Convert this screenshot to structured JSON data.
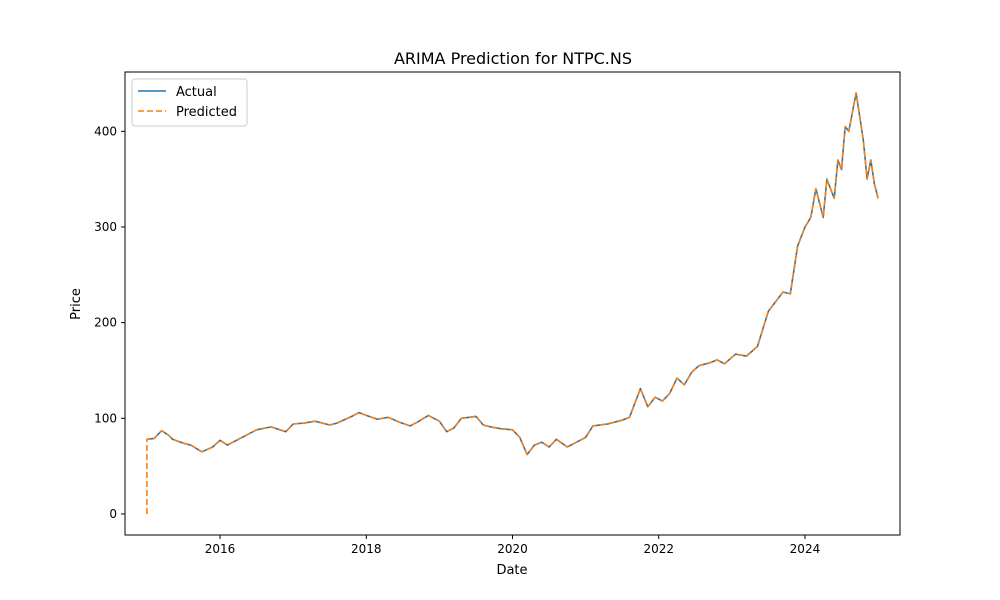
{
  "chart_data": {
    "type": "line",
    "title": "ARIMA Prediction for NTPC.NS",
    "xlabel": "Date",
    "ylabel": "Price",
    "xlim": [
      2014.7,
      2025.3
    ],
    "ylim": [
      -22,
      462
    ],
    "xticks": [
      2016,
      2018,
      2020,
      2022,
      2024
    ],
    "xtick_labels": [
      "2016",
      "2018",
      "2020",
      "2022",
      "2024"
    ],
    "yticks": [
      0,
      100,
      200,
      300,
      400
    ],
    "ytick_labels": [
      "0",
      "100",
      "200",
      "300",
      "400"
    ],
    "grid": false,
    "legend_position": "top-left",
    "series": [
      {
        "name": "Actual",
        "color": "#1f77b4",
        "style": "solid",
        "x": [
          2015.0,
          2015.1,
          2015.2,
          2015.3,
          2015.35,
          2015.5,
          2015.6,
          2015.75,
          2015.9,
          2016.0,
          2016.1,
          2016.3,
          2016.5,
          2016.7,
          2016.9,
          2017.0,
          2017.15,
          2017.3,
          2017.5,
          2017.6,
          2017.8,
          2017.9,
          2018.0,
          2018.15,
          2018.3,
          2018.45,
          2018.6,
          2018.7,
          2018.85,
          2019.0,
          2019.1,
          2019.2,
          2019.3,
          2019.5,
          2019.6,
          2019.7,
          2019.85,
          2020.0,
          2020.1,
          2020.2,
          2020.3,
          2020.4,
          2020.5,
          2020.6,
          2020.75,
          2020.85,
          2021.0,
          2021.1,
          2021.3,
          2021.5,
          2021.6,
          2021.75,
          2021.85,
          2021.95,
          2022.05,
          2022.15,
          2022.25,
          2022.35,
          2022.45,
          2022.55,
          2022.7,
          2022.8,
          2022.9,
          2023.05,
          2023.2,
          2023.35,
          2023.5,
          2023.6,
          2023.7,
          2023.8,
          2023.9,
          2024.0,
          2024.08,
          2024.15,
          2024.25,
          2024.3,
          2024.4,
          2024.45,
          2024.5,
          2024.55,
          2024.6,
          2024.7,
          2024.75,
          2024.8,
          2024.85,
          2024.9,
          2024.95,
          2025.0
        ],
        "y": [
          78,
          79,
          87,
          82,
          78,
          74,
          72,
          65,
          70,
          77,
          72,
          80,
          88,
          91,
          86,
          94,
          95,
          97,
          93,
          95,
          102,
          106,
          103,
          99,
          101,
          96,
          92,
          96,
          103,
          97,
          86,
          90,
          100,
          102,
          93,
          91,
          89,
          88,
          80,
          62,
          72,
          75,
          70,
          78,
          70,
          74,
          80,
          92,
          94,
          98,
          101,
          131,
          112,
          122,
          118,
          126,
          142,
          135,
          148,
          155,
          158,
          161,
          157,
          167,
          165,
          175,
          212,
          222,
          232,
          230,
          280,
          300,
          310,
          340,
          310,
          350,
          330,
          370,
          360,
          405,
          400,
          440,
          415,
          390,
          350,
          370,
          345,
          330
        ]
      },
      {
        "name": "Predicted",
        "color": "#ff7f0e",
        "style": "dashed",
        "x": [
          2015.0,
          2015.0,
          2015.1,
          2015.2,
          2015.3,
          2015.35,
          2015.5,
          2015.6,
          2015.75,
          2015.9,
          2016.0,
          2016.1,
          2016.3,
          2016.5,
          2016.7,
          2016.9,
          2017.0,
          2017.15,
          2017.3,
          2017.5,
          2017.6,
          2017.8,
          2017.9,
          2018.0,
          2018.15,
          2018.3,
          2018.45,
          2018.6,
          2018.7,
          2018.85,
          2019.0,
          2019.1,
          2019.2,
          2019.3,
          2019.5,
          2019.6,
          2019.7,
          2019.85,
          2020.0,
          2020.1,
          2020.2,
          2020.3,
          2020.4,
          2020.5,
          2020.6,
          2020.75,
          2020.85,
          2021.0,
          2021.1,
          2021.3,
          2021.5,
          2021.6,
          2021.75,
          2021.85,
          2021.95,
          2022.05,
          2022.15,
          2022.25,
          2022.35,
          2022.45,
          2022.55,
          2022.7,
          2022.8,
          2022.9,
          2023.05,
          2023.2,
          2023.35,
          2023.5,
          2023.6,
          2023.7,
          2023.8,
          2023.9,
          2024.0,
          2024.08,
          2024.15,
          2024.25,
          2024.3,
          2024.4,
          2024.45,
          2024.5,
          2024.55,
          2024.6,
          2024.7,
          2024.75,
          2024.8,
          2024.85,
          2024.9,
          2024.95,
          2025.0
        ],
        "y": [
          0,
          78,
          79,
          87,
          82,
          78,
          74,
          72,
          65,
          70,
          77,
          72,
          80,
          88,
          91,
          86,
          94,
          95,
          97,
          93,
          95,
          102,
          106,
          103,
          99,
          101,
          96,
          92,
          96,
          103,
          97,
          86,
          90,
          100,
          102,
          93,
          91,
          89,
          88,
          80,
          62,
          72,
          75,
          70,
          78,
          70,
          74,
          80,
          92,
          94,
          98,
          101,
          131,
          112,
          122,
          118,
          126,
          142,
          135,
          148,
          155,
          158,
          161,
          157,
          167,
          165,
          175,
          212,
          222,
          232,
          230,
          280,
          300,
          310,
          340,
          310,
          350,
          330,
          370,
          360,
          405,
          400,
          440,
          415,
          390,
          350,
          370,
          345,
          330
        ]
      }
    ]
  }
}
